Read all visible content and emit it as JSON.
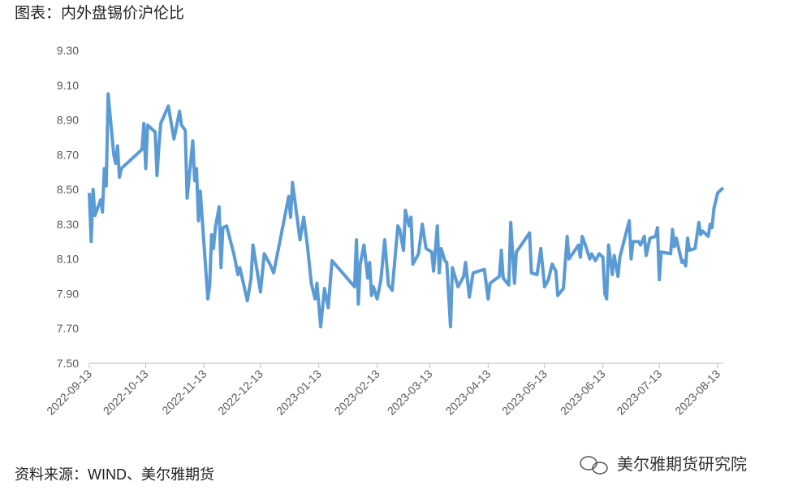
{
  "chart_data": {
    "type": "line",
    "title": "图表：内外盘锡价沪伦比",
    "source": "资料来源：WIND、美尔雅期货",
    "watermark": "美尔雅期货研究院",
    "xlim": [
      "2022-09-13",
      "2023-08-16"
    ],
    "xticks": [
      "2022-09-13",
      "2022-10-13",
      "2022-11-13",
      "2022-12-13",
      "2023-01-13",
      "2023-02-13",
      "2023-03-13",
      "2023-04-13",
      "2023-05-13",
      "2023-06-13",
      "2023-07-13",
      "2023-08-13"
    ],
    "ylim": [
      7.5,
      9.3
    ],
    "yticks": [
      {
        "value": 7.5,
        "label": "7.50"
      },
      {
        "value": 7.7,
        "label": "7.70"
      },
      {
        "value": 7.9,
        "label": "7.90"
      },
      {
        "value": 8.1,
        "label": "8.10"
      },
      {
        "value": 8.3,
        "label": "8.30"
      },
      {
        "value": 8.5,
        "label": "8.50"
      },
      {
        "value": 8.7,
        "label": "8.70"
      },
      {
        "value": 8.9,
        "label": "8.90"
      },
      {
        "value": 9.1,
        "label": "9.10"
      },
      {
        "value": 9.3,
        "label": "9.30"
      }
    ],
    "grid": false,
    "color": "#5b9bd5",
    "x": [
      "2022-09-13",
      "2022-09-14",
      "2022-09-15",
      "2022-09-16",
      "2022-09-19",
      "2022-09-20",
      "2022-09-21",
      "2022-09-22",
      "2022-09-23",
      "2022-09-26",
      "2022-09-27",
      "2022-09-28",
      "2022-09-29",
      "2022-09-30",
      "2022-10-11",
      "2022-10-12",
      "2022-10-13",
      "2022-10-14",
      "2022-10-18",
      "2022-10-19",
      "2022-10-20",
      "2022-10-21",
      "2022-10-25",
      "2022-10-28",
      "2022-10-31",
      "2022-11-01",
      "2022-11-03",
      "2022-11-04",
      "2022-11-07",
      "2022-11-08",
      "2022-11-09",
      "2022-11-10",
      "2022-11-11",
      "2022-11-15",
      "2022-11-16",
      "2022-11-17",
      "2022-11-18",
      "2022-11-19",
      "2022-11-21",
      "2022-11-22",
      "2022-11-23",
      "2022-11-25",
      "2022-11-29",
      "2022-12-01",
      "2022-12-02",
      "2022-12-06",
      "2022-12-08",
      "2022-12-09",
      "2022-12-13",
      "2022-12-15",
      "2022-12-18",
      "2022-12-20",
      "2022-12-28",
      "2022-12-29",
      "2022-12-30",
      "2023-01-03",
      "2023-01-05",
      "2023-01-07",
      "2023-01-09",
      "2023-01-11",
      "2023-01-12",
      "2023-01-14",
      "2023-01-16",
      "2023-01-18",
      "2023-01-20",
      "2023-02-01",
      "2023-02-02",
      "2023-02-03",
      "2023-02-04",
      "2023-02-06",
      "2023-02-08",
      "2023-02-09",
      "2023-02-10",
      "2023-02-11",
      "2023-02-13",
      "2023-02-15",
      "2023-02-17",
      "2023-02-19",
      "2023-02-21",
      "2023-02-24",
      "2023-02-25",
      "2023-02-27",
      "2023-02-28",
      "2023-03-02",
      "2023-03-03",
      "2023-03-04",
      "2023-03-07",
      "2023-03-09",
      "2023-03-11",
      "2023-03-14",
      "2023-03-15",
      "2023-03-17",
      "2023-03-18",
      "2023-03-19",
      "2023-03-21",
      "2023-03-22",
      "2023-03-24",
      "2023-03-25",
      "2023-03-28",
      "2023-03-31",
      "2023-04-01",
      "2023-04-03",
      "2023-04-05",
      "2023-04-11",
      "2023-04-13",
      "2023-04-14",
      "2023-04-19",
      "2023-04-20",
      "2023-04-21",
      "2023-04-24",
      "2023-04-25",
      "2023-04-27",
      "2023-04-28",
      "2023-05-05",
      "2023-05-06",
      "2023-05-09",
      "2023-05-11",
      "2023-05-13",
      "2023-05-15",
      "2023-05-17",
      "2023-05-19",
      "2023-05-20",
      "2023-05-23",
      "2023-05-25",
      "2023-05-26",
      "2023-05-31",
      "2023-06-01",
      "2023-06-02",
      "2023-06-04",
      "2023-06-06",
      "2023-06-07",
      "2023-06-09",
      "2023-06-11",
      "2023-06-13",
      "2023-06-14",
      "2023-06-15",
      "2023-06-16",
      "2023-06-18",
      "2023-06-19",
      "2023-06-21",
      "2023-06-22",
      "2023-06-27",
      "2023-06-28",
      "2023-06-29",
      "2023-07-02",
      "2023-07-03",
      "2023-07-05",
      "2023-07-06",
      "2023-07-08",
      "2023-07-11",
      "2023-07-12",
      "2023-07-13",
      "2023-07-14",
      "2023-07-19",
      "2023-07-20",
      "2023-07-21",
      "2023-07-22",
      "2023-07-25",
      "2023-07-26",
      "2023-07-27",
      "2023-07-28",
      "2023-07-29",
      "2023-08-01",
      "2023-08-03",
      "2023-08-04",
      "2023-08-05",
      "2023-08-08",
      "2023-08-09",
      "2023-08-10",
      "2023-08-11",
      "2023-08-13",
      "2023-08-16"
    ],
    "values": [
      8.48,
      8.2,
      8.5,
      8.35,
      8.44,
      8.37,
      8.62,
      8.52,
      9.05,
      8.7,
      8.65,
      8.75,
      8.57,
      8.62,
      8.73,
      8.88,
      8.62,
      8.87,
      8.83,
      8.58,
      8.75,
      8.88,
      8.98,
      8.79,
      8.95,
      8.87,
      8.84,
      8.45,
      8.78,
      8.55,
      8.62,
      8.32,
      8.49,
      7.87,
      7.95,
      8.24,
      8.16,
      8.28,
      8.4,
      8.05,
      8.28,
      8.29,
      8.12,
      8.01,
      8.05,
      7.86,
      7.99,
      8.18,
      7.91,
      8.13,
      8.07,
      8.02,
      8.46,
      8.34,
      8.54,
      8.21,
      8.34,
      8.17,
      7.96,
      7.87,
      7.96,
      7.71,
      7.93,
      7.82,
      8.09,
      7.94,
      8.21,
      7.84,
      8.07,
      8.18,
      7.99,
      8.08,
      7.89,
      7.94,
      7.87,
      7.98,
      8.21,
      7.95,
      7.92,
      8.29,
      8.27,
      8.15,
      8.38,
      8.29,
      8.34,
      8.07,
      8.13,
      8.3,
      8.16,
      8.14,
      8.03,
      8.29,
      8.02,
      8.16,
      8.09,
      8.08,
      7.71,
      8.05,
      7.94,
      8.0,
      8.08,
      7.88,
      8.02,
      8.04,
      7.87,
      7.96,
      8.0,
      8.15,
      7.99,
      7.95,
      8.31,
      7.96,
      8.14,
      8.25,
      8.02,
      8.01,
      8.16,
      7.94,
      7.98,
      8.07,
      8.03,
      7.89,
      7.93,
      8.23,
      8.1,
      8.18,
      8.11,
      8.23,
      8.17,
      8.1,
      8.13,
      8.09,
      8.13,
      8.11,
      7.9,
      7.87,
      8.18,
      8.01,
      8.12,
      8.0,
      8.11,
      8.32,
      8.1,
      8.2,
      8.2,
      8.18,
      8.23,
      8.12,
      8.22,
      8.23,
      8.28,
      7.98,
      8.14,
      8.13,
      8.27,
      8.17,
      8.22,
      8.08,
      8.09,
      8.06,
      8.22,
      8.15,
      8.16,
      8.31,
      8.24,
      8.26,
      8.23,
      8.3,
      8.28,
      8.39,
      8.48,
      8.51
    ]
  }
}
